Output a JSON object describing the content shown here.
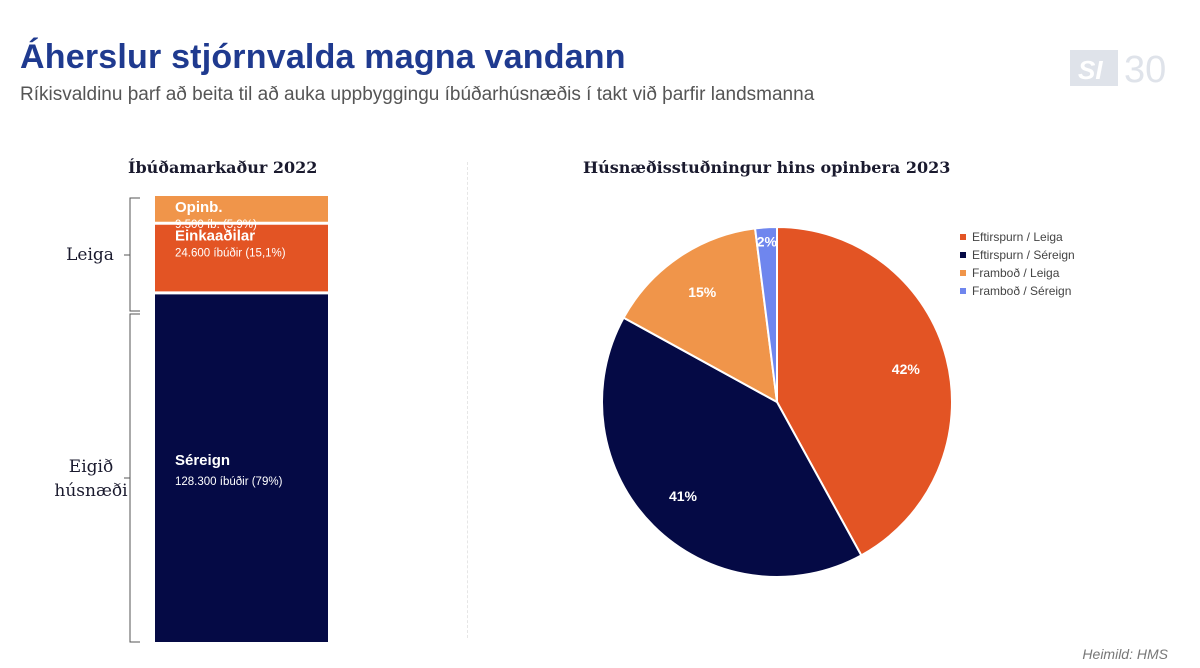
{
  "header": {
    "title": "Áherslur stjórnvalda magna vandann",
    "subtitle": "Ríkisvaldinu þarf að beita til að auka uppbyggingu íbúðarhúsnæðis í takt við þarfir landsmanna",
    "logo_text": "SI 30"
  },
  "left_chart": {
    "bracket_labels": {
      "leiga": "Leiga",
      "eigid_line1": "Eigið",
      "eigid_line2": "húsnæði"
    }
  },
  "source": "Heimild: HMS",
  "colors": {
    "navy": "#050a45",
    "dark_orange": "#e35424",
    "light_orange": "#f0954a",
    "blue": "#6f86ee"
  },
  "chart_data": [
    {
      "type": "bar",
      "stacked": true,
      "title": "Íbúðamarkaður 2022",
      "series": [
        {
          "name": "Séreign",
          "value": 128300,
          "label": "128.300 íbúðir (79%)",
          "percent": 79,
          "color": "#050a45"
        },
        {
          "name": "Einkaaðilar",
          "value": 24600,
          "label": "24.600 íbúðir (15,1%)",
          "percent": 15.1,
          "color": "#e35424"
        },
        {
          "name": "Opinb.",
          "value": 9500,
          "label": "9.500 íb. (5,9%)",
          "percent": 5.9,
          "color": "#f0954a"
        }
      ]
    },
    {
      "type": "pie",
      "title": "Húsnæðisstuðningur hins opinbera 2023",
      "legend_position": "right",
      "slices": [
        {
          "name": "Eftirspurn / Leiga",
          "value": 42,
          "label": "42%",
          "color": "#e35424"
        },
        {
          "name": "Eftirspurn / Séreign",
          "value": 41,
          "label": "41%",
          "color": "#050a45"
        },
        {
          "name": "Framboð / Leiga",
          "value": 15,
          "label": "15%",
          "color": "#f0954a"
        },
        {
          "name": "Framboð / Séreign",
          "value": 2,
          "label": "2%",
          "color": "#6f86ee"
        }
      ]
    }
  ]
}
